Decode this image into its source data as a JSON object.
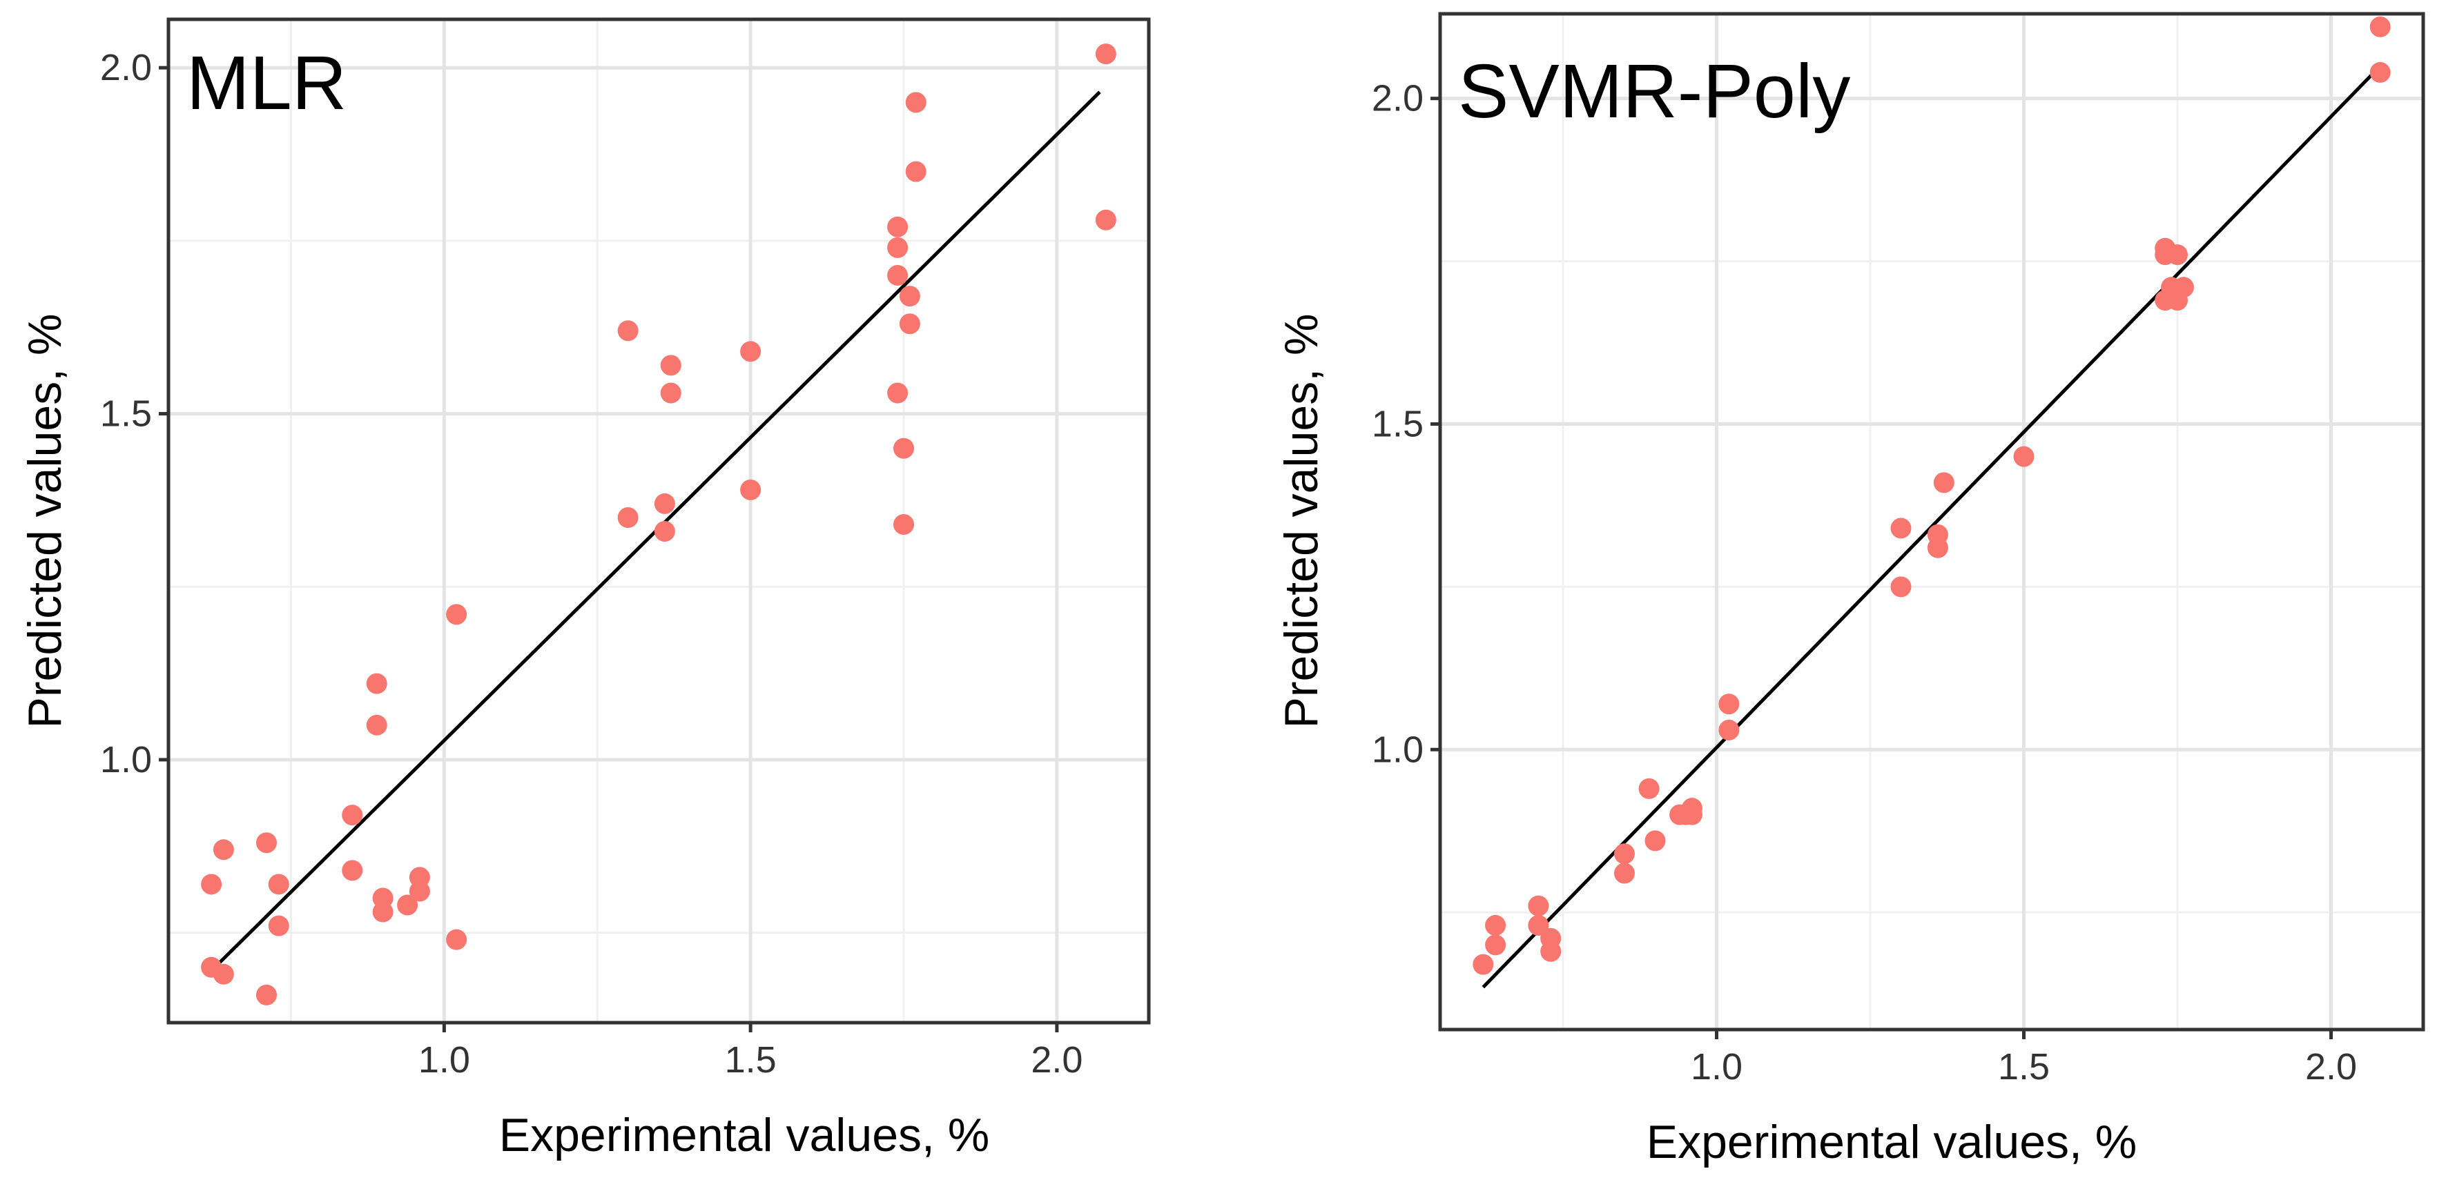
{
  "chart_data": [
    {
      "type": "scatter",
      "title": "MLR",
      "xlabel": "Experimental values, %",
      "ylabel": "Predicted values, %",
      "xlim": [
        0.55,
        2.15
      ],
      "ylim": [
        0.62,
        2.07
      ],
      "xticks": [
        "1.0",
        "1.5",
        "2.0"
      ],
      "yticks": [
        "1.0",
        "1.5",
        "2.0"
      ],
      "xtick_values": [
        1.0,
        1.5,
        2.0
      ],
      "ytick_values": [
        1.0,
        1.5,
        2.0
      ],
      "grid": true,
      "point_color": "#F8766D",
      "fit_line": {
        "x": [
          0.62,
          2.07
        ],
        "y": [
          0.695,
          1.965
        ]
      },
      "series": [
        {
          "x": [
            2.08,
            2.08,
            1.77,
            1.77,
            1.74,
            1.74,
            1.74,
            1.76,
            1.76,
            1.74,
            1.75,
            1.75,
            1.3,
            1.37,
            1.37,
            1.5,
            1.5,
            1.3,
            1.36,
            1.36,
            1.02,
            1.02,
            0.89,
            0.89,
            0.85,
            0.85,
            0.96,
            0.96,
            0.94,
            0.9,
            0.9,
            0.71,
            0.73,
            0.73,
            0.71,
            0.64,
            0.62,
            0.62,
            0.64
          ],
          "y": [
            2.02,
            1.78,
            1.95,
            1.85,
            1.77,
            1.74,
            1.7,
            1.67,
            1.63,
            1.53,
            1.45,
            1.34,
            1.62,
            1.57,
            1.53,
            1.59,
            1.39,
            1.35,
            1.37,
            1.33,
            1.21,
            0.74,
            1.11,
            1.05,
            0.92,
            0.84,
            0.83,
            0.81,
            0.79,
            0.8,
            0.78,
            0.88,
            0.82,
            0.76,
            0.66,
            0.87,
            0.82,
            0.7,
            0.69
          ]
        }
      ]
    },
    {
      "type": "scatter",
      "title": "SVMR-Poly",
      "xlabel": "Experimental values, %",
      "ylabel": "Predicted values, %",
      "xlim": [
        0.55,
        2.15
      ],
      "ylim": [
        0.57,
        2.13
      ],
      "xticks": [
        "1.0",
        "1.5",
        "2.0"
      ],
      "yticks": [
        "1.0",
        "1.5",
        "2.0"
      ],
      "xtick_values": [
        1.0,
        1.5,
        2.0
      ],
      "ytick_values": [
        1.0,
        1.5,
        2.0
      ],
      "grid": true,
      "point_color": "#F8766D",
      "fit_line": {
        "x": [
          0.62,
          2.07
        ],
        "y": [
          0.635,
          2.04
        ]
      },
      "series": [
        {
          "x": [
            2.08,
            2.08,
            1.73,
            1.73,
            1.75,
            1.74,
            1.76,
            1.75,
            1.73,
            1.74,
            1.5,
            1.37,
            1.3,
            1.36,
            1.36,
            1.3,
            1.02,
            1.02,
            0.89,
            0.96,
            0.94,
            0.96,
            0.95,
            0.9,
            0.85,
            0.85,
            0.71,
            0.71,
            0.73,
            0.73,
            0.64,
            0.64,
            0.62
          ],
          "y": [
            2.11,
            2.04,
            1.77,
            1.76,
            1.76,
            1.71,
            1.71,
            1.69,
            1.69,
            1.7,
            1.45,
            1.41,
            1.34,
            1.33,
            1.31,
            1.25,
            1.07,
            1.03,
            0.94,
            0.91,
            0.9,
            0.9,
            0.9,
            0.86,
            0.84,
            0.81,
            0.76,
            0.73,
            0.71,
            0.69,
            0.73,
            0.7,
            0.67
          ]
        }
      ]
    }
  ]
}
